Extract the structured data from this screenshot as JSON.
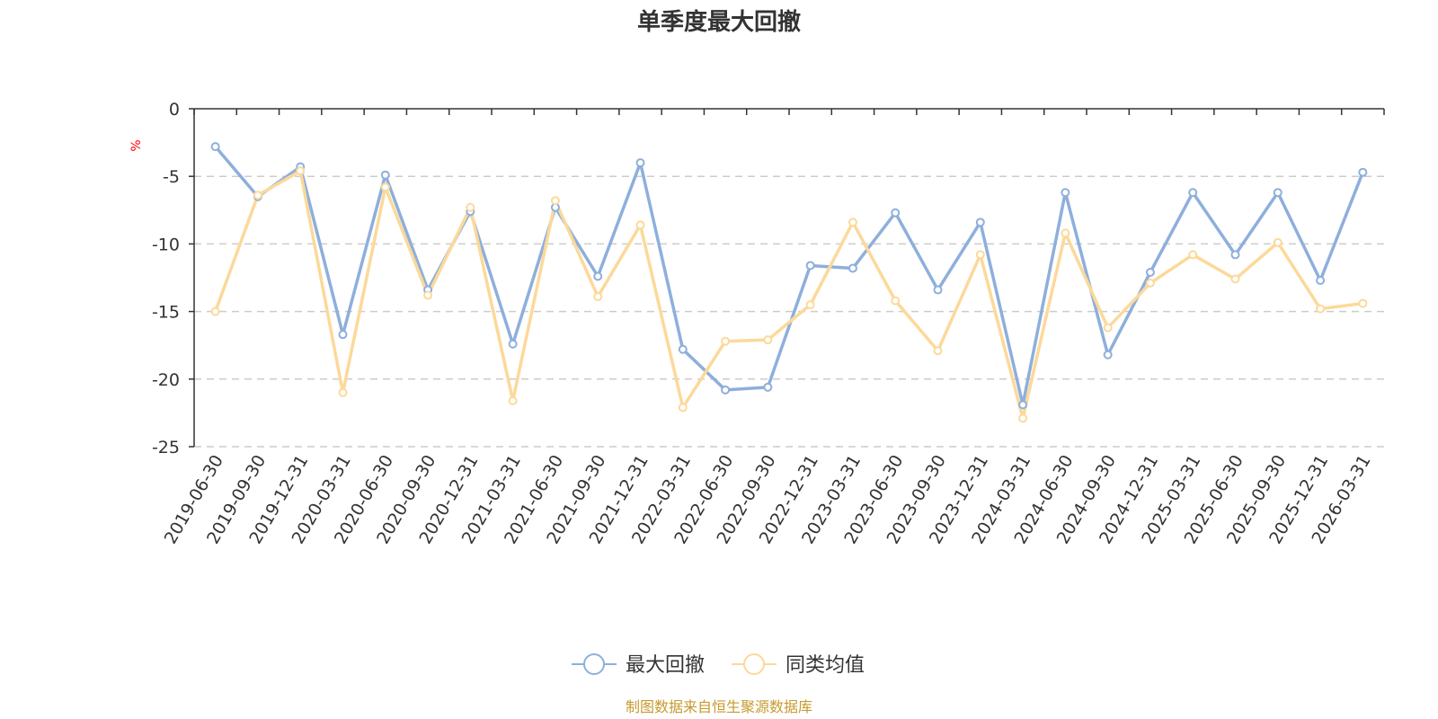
{
  "chart_data": {
    "type": "line",
    "title": "单季度最大回撤",
    "ylabel": "%",
    "ylim": [
      -25,
      0
    ],
    "yticks": [
      "0",
      "-5",
      "-10",
      "-15",
      "-20",
      "-25"
    ],
    "ytick_values": [
      0,
      -5,
      -10,
      -15,
      -20,
      -25
    ],
    "grid": true,
    "legend_position": "bottom-center",
    "categories": [
      "2019-06-30",
      "2019-09-30",
      "2019-12-31",
      "2020-03-31",
      "2020-06-30",
      "2020-09-30",
      "2020-12-31",
      "2021-03-31",
      "2021-06-30",
      "2021-09-30",
      "2021-12-31",
      "2022-03-31",
      "2022-06-30",
      "2022-09-30",
      "2022-12-31",
      "2023-03-31",
      "2023-06-30",
      "2023-09-30",
      "2023-12-31",
      "2024-03-31",
      "2024-06-30",
      "2024-09-30",
      "2024-12-31",
      "2025-03-31",
      "2025-06-30",
      "2025-09-30",
      "2025-12-31",
      "2026-03-31"
    ],
    "series": [
      {
        "name": "最大回撤",
        "color": "#8eafdc",
        "values": [
          -2.8,
          -6.5,
          -4.3,
          -16.7,
          -4.9,
          -13.4,
          -7.6,
          -17.4,
          -7.3,
          -12.4,
          -4.0,
          -17.8,
          -20.8,
          -20.6,
          -11.6,
          -11.8,
          -7.7,
          -13.4,
          -8.4,
          -21.9,
          -6.2,
          -18.2,
          -12.1,
          -6.2,
          -10.8,
          -6.2,
          -12.7,
          -4.7
        ]
      },
      {
        "name": "同类均值",
        "color": "#fcd99a",
        "values": [
          -15.0,
          -6.4,
          -4.6,
          -21.0,
          -5.8,
          -13.8,
          -7.3,
          -21.6,
          -6.8,
          -13.9,
          -8.6,
          -22.1,
          -17.2,
          -17.1,
          -14.5,
          -8.4,
          -14.2,
          -17.9,
          -10.8,
          -22.9,
          -9.2,
          -16.2,
          -12.9,
          -10.8,
          -12.6,
          -9.9,
          -14.8,
          -14.4
        ]
      }
    ],
    "source": "制图数据来自恒生聚源数据库"
  }
}
